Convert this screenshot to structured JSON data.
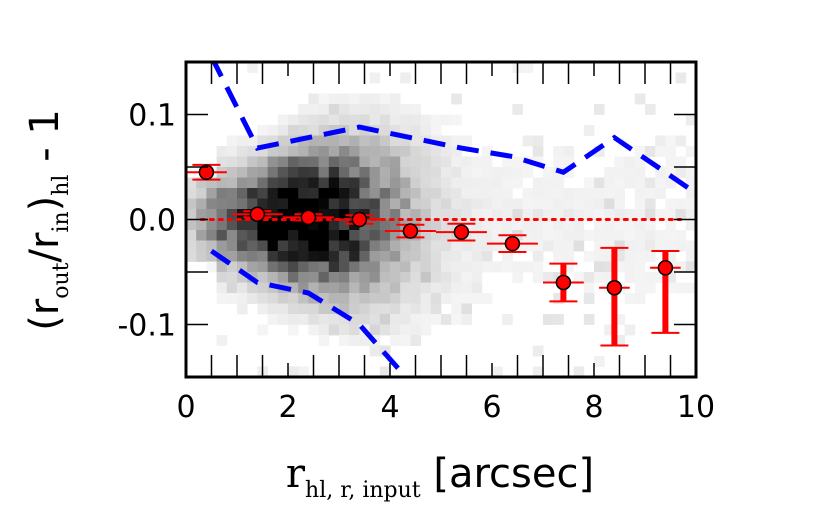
{
  "chart_data": {
    "type": "scatter",
    "xlabel": {
      "main": "r",
      "sub": "hl, r, input",
      "unit": " [arcsec]"
    },
    "ylabel": {
      "open": "(r",
      "sub1": "out",
      "mid": "/r",
      "sub2": "in",
      "close": ")",
      "sub3": "hl",
      "tail": " - 1"
    },
    "xlim": [
      0,
      10
    ],
    "ylim": [
      -0.15,
      0.15
    ],
    "xticks": [
      0,
      2,
      4,
      6,
      8,
      10
    ],
    "xtick_labels": [
      "0",
      "2",
      "4",
      "6",
      "8",
      "10"
    ],
    "yticks": [
      0.1,
      0.0,
      -0.1
    ],
    "ytick_labels": [
      "0.1",
      "0.0",
      "-0.1"
    ],
    "grid": false,
    "reference_line": {
      "y": 0.0,
      "style": "dotted",
      "color": "#ff0000"
    },
    "median_points": {
      "color": "#ff0000",
      "x": [
        0.4,
        1.4,
        2.4,
        3.4,
        4.4,
        5.4,
        6.4,
        7.4,
        8.4,
        9.4
      ],
      "y": [
        0.045,
        0.005,
        0.002,
        0.0,
        -0.011,
        -0.012,
        -0.023,
        -0.06,
        -0.065,
        -0.046
      ],
      "y_err_low": [
        0.007,
        0.003,
        0.003,
        0.004,
        0.006,
        0.008,
        0.008,
        0.018,
        0.055,
        0.062
      ],
      "y_err_high": [
        0.007,
        0.003,
        0.003,
        0.004,
        0.006,
        0.008,
        0.008,
        0.018,
        0.038,
        0.016
      ],
      "x_err": [
        0.4,
        0.5,
        0.5,
        0.5,
        0.5,
        0.5,
        0.5,
        0.4,
        0.3,
        0.3
      ]
    },
    "percentile_upper": {
      "color": "#0000ff",
      "style": "dashed",
      "x": [
        0.5,
        1.4,
        2.4,
        3.4,
        4.4,
        5.4,
        6.4,
        7.4,
        8.4,
        9.4,
        10.0
      ],
      "y": [
        0.155,
        0.068,
        0.078,
        0.088,
        0.078,
        0.068,
        0.06,
        0.045,
        0.078,
        0.045,
        0.025
      ]
    },
    "percentile_lower": {
      "color": "#0000ff",
      "style": "dashed",
      "x": [
        0.5,
        1.4,
        2.4,
        3.4,
        4.4
      ],
      "y": [
        -0.03,
        -0.06,
        -0.07,
        -0.1,
        -0.155
      ]
    },
    "density_map": {
      "colormap": "gray_r",
      "note": ""
    }
  }
}
